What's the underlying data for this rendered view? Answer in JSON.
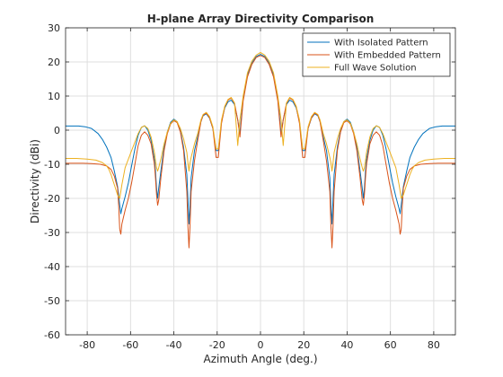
{
  "chart_data": {
    "type": "line",
    "title": "H-plane Array Directivity Comparison",
    "xlabel": "Azimuth Angle (deg.)",
    "ylabel": "Directivity (dBi)",
    "xlim": [
      -90,
      90
    ],
    "ylim": [
      -60,
      30
    ],
    "xticks": [
      -80,
      -60,
      -40,
      -20,
      0,
      20,
      40,
      60,
      80
    ],
    "yticks": [
      -60,
      -50,
      -40,
      -30,
      -20,
      -10,
      0,
      10,
      20,
      30
    ],
    "grid": true,
    "legend_position": "top-right",
    "series": [
      {
        "name": "With Isolated Pattern",
        "color": "#0072bd",
        "x": [
          0,
          2,
          4,
          6,
          8,
          9.5,
          10.5,
          12,
          13.5,
          15,
          16.5,
          18,
          19.5,
          20.5,
          22,
          23.5,
          25,
          26.5,
          27.5,
          29,
          30.5,
          32,
          32.5,
          33,
          33.5,
          34,
          35.5,
          37,
          38.5,
          40,
          41.5,
          43,
          44.5,
          46,
          47,
          47.5,
          48,
          48.5,
          49,
          50.5,
          52,
          53.5,
          55,
          56.5,
          58,
          59.5,
          61,
          62.5,
          64,
          64.5,
          65,
          65.5,
          66,
          67.5,
          69,
          71,
          73,
          75,
          78,
          81,
          84,
          87,
          90
        ],
        "y": [
          22.2,
          21.6,
          19.7,
          16.3,
          9.5,
          -1,
          3,
          7.5,
          8.8,
          8.3,
          6.5,
          2.5,
          -6,
          -6,
          0.5,
          3.5,
          4.8,
          4.2,
          2.5,
          -2,
          -6,
          -14,
          -22,
          -27.5,
          -20,
          -13,
          -5,
          0,
          2.5,
          3.2,
          2.3,
          -0.5,
          -5,
          -12,
          -17,
          -20,
          -17,
          -12,
          -8.5,
          -3,
          0,
          1.3,
          0.8,
          -1.5,
          -5.5,
          -10.5,
          -15.5,
          -19.5,
          -23,
          -24.5,
          -22,
          -19,
          -16.5,
          -12,
          -8,
          -5,
          -2.7,
          -1,
          0.5,
          1,
          1.2,
          1.2,
          1.2
        ]
      },
      {
        "name": "With Embedded Pattern",
        "color": "#d95319",
        "x": [
          0,
          2,
          4,
          6,
          8,
          9.5,
          10.5,
          12,
          13.5,
          15,
          16.5,
          18,
          19.5,
          20.5,
          22,
          23.5,
          25,
          26.5,
          27.5,
          29,
          30.5,
          32,
          32.5,
          33,
          33.5,
          34,
          35.5,
          37,
          38.5,
          40,
          41.5,
          43,
          44.5,
          46,
          47,
          47.5,
          48,
          48.5,
          49,
          50.5,
          52,
          53.5,
          55,
          56.5,
          58,
          59.5,
          61,
          62.5,
          64,
          64.5,
          65,
          65.5,
          66,
          67.5,
          69,
          71,
          74,
          78,
          82,
          86,
          90
        ],
        "y": [
          21.9,
          21.3,
          19.3,
          15.6,
          8.5,
          -2,
          3,
          7.8,
          9.4,
          8.8,
          6.8,
          2,
          -8,
          -8,
          0.5,
          3.6,
          5,
          4.4,
          2.5,
          -3,
          -9,
          -18,
          -28,
          -34.5,
          -28,
          -18,
          -6,
          -0.5,
          2.2,
          2.8,
          1.8,
          -1,
          -6,
          -14,
          -20.5,
          -22,
          -19,
          -14,
          -10,
          -4,
          -1.5,
          -0.5,
          -1.5,
          -4.5,
          -10,
          -15.5,
          -20,
          -23.5,
          -27.5,
          -30.5,
          -29,
          -22,
          -17,
          -13.5,
          -11.5,
          -10.5,
          -10,
          -9.8,
          -9.7,
          -9.7,
          -9.7
        ]
      },
      {
        "name": "Full Wave Solution",
        "color": "#edb120",
        "x": [
          0,
          2,
          4,
          6,
          8,
          9.5,
          10.5,
          12,
          13.5,
          15,
          16.5,
          18,
          19.5,
          20.5,
          22,
          23.5,
          25,
          26.5,
          27.5,
          29,
          30.5,
          32,
          32.5,
          33,
          33.5,
          34,
          35.5,
          37,
          38.5,
          40,
          41.5,
          43,
          44.5,
          46,
          47,
          47.5,
          48,
          48.5,
          49,
          50.5,
          52,
          53.5,
          55,
          56.5,
          58,
          59.5,
          61,
          62.5,
          64,
          65,
          66,
          67,
          68,
          69,
          70,
          71,
          73,
          76,
          80,
          85,
          90
        ],
        "y": [
          22.8,
          22,
          20.2,
          16.8,
          10,
          3,
          -4.5,
          8,
          9.6,
          9,
          7,
          3,
          -5.5,
          -5.5,
          1,
          4,
          5.2,
          4.6,
          3,
          -1,
          -4,
          -8,
          -9.5,
          -12,
          -9.5,
          -6.5,
          -2.5,
          0.5,
          2.5,
          3,
          2,
          -0.5,
          -4,
          -8.5,
          -11,
          -12,
          -11,
          -9,
          -6.5,
          -2,
          0.5,
          1.3,
          0.8,
          -1,
          -3.5,
          -6,
          -8.5,
          -11,
          -16,
          -20,
          -19,
          -17,
          -15,
          -13,
          -11.5,
          -10.5,
          -9.5,
          -8.8,
          -8.5,
          -8.3,
          -8.3
        ]
      }
    ]
  }
}
